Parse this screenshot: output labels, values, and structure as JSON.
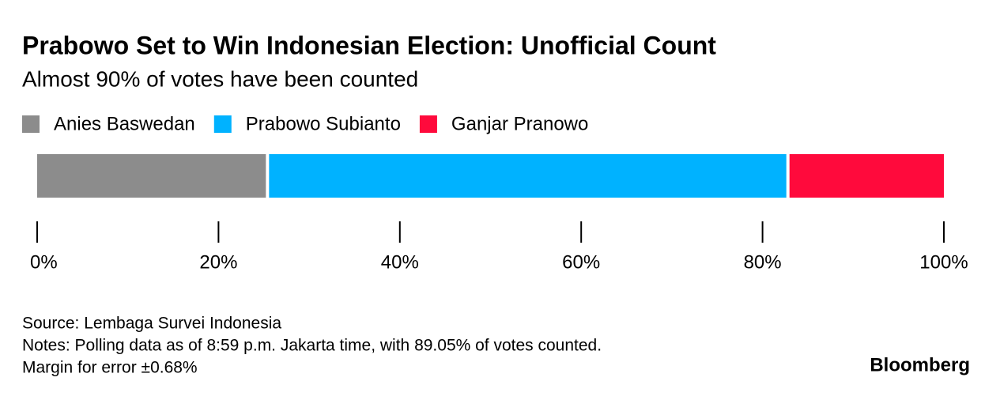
{
  "chart_data": {
    "type": "stacked_bar",
    "orientation": "horizontal",
    "title": "Prabowo Set to Win Indonesian Election: Unofficial Count",
    "subtitle": "Almost 90% of votes have been counted",
    "categories": [
      null
    ],
    "series": [
      {
        "name": "Anies Baswedan",
        "color": "#8c8c8c",
        "values": [
          25.4
        ]
      },
      {
        "name": "Prabowo Subianto",
        "color": "#00b2ff",
        "values": [
          57.4
        ]
      },
      {
        "name": "Ganjar Pranowo",
        "color": "#ff0a3c",
        "values": [
          17.2
        ]
      }
    ],
    "xlim": [
      0,
      100
    ],
    "xticks": [
      {
        "value": 0,
        "label": "0%"
      },
      {
        "value": 20,
        "label": "20%"
      },
      {
        "value": 40,
        "label": "40%"
      },
      {
        "value": 60,
        "label": "60%"
      },
      {
        "value": 80,
        "label": "80%"
      },
      {
        "value": 100,
        "label": "100%"
      }
    ],
    "legend": "top-left",
    "source": "Source: Lembaga Survei Indonesia",
    "notes": [
      "Notes: Polling data as of 8:59 p.m. Jakarta time, with 89.05% of votes counted.",
      "Margin for error ±0.68%"
    ],
    "brand": "Bloomberg"
  }
}
